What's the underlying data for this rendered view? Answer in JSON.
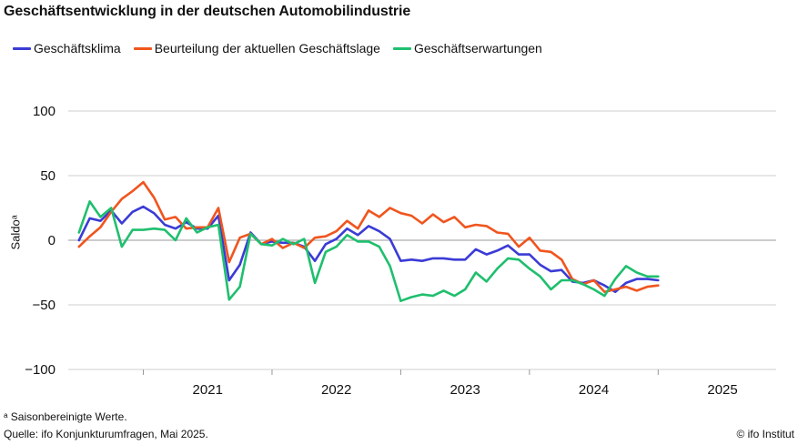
{
  "title": "Geschäftsentwicklung in der deutschen Automobilindustrie",
  "footnote": "ᵃ Saisonbereinigte Werte.",
  "source": "Quelle: ifo Konjunkturumfragen, Mai 2025.",
  "credit": "© ifo Institut",
  "colors": {
    "klima": "#3b3bd6",
    "lage": "#f0551e",
    "erwartungen": "#1fbf6e",
    "grid": "#cfcfcf",
    "zero": "#9a9a9a"
  },
  "chart_data": {
    "type": "line",
    "ylabel": "Saldoᵃ",
    "ylim": [
      -100,
      100
    ],
    "yticks": [
      100,
      50,
      0,
      -50,
      -100
    ],
    "ytick_labels": [
      "100",
      "50",
      "0",
      "−50",
      "−100"
    ],
    "x_start": "2020-06",
    "x_end": "2025-12",
    "year_labels": [
      "2021",
      "2022",
      "2023",
      "2024",
      "2025"
    ],
    "grid": true,
    "legend": "top-left",
    "series": [
      {
        "name": "Geschäftsklima",
        "key": "klima",
        "values": [
          0,
          17,
          15,
          23,
          13,
          22,
          26,
          21,
          12,
          9,
          14,
          9,
          9,
          19,
          -31,
          -19,
          6,
          -3,
          -1,
          -2,
          -2,
          -5,
          -16,
          -3,
          1,
          9,
          4,
          11,
          7,
          1,
          -16,
          -15,
          -16,
          -14,
          -14,
          -15,
          -15,
          -7,
          -11,
          -8,
          -4,
          -11,
          -11,
          -19,
          -24,
          -23,
          -32,
          -33,
          -31,
          -35,
          -40,
          -33,
          -30,
          -30,
          -31
        ]
      },
      {
        "name": "Beurteilung der aktuellen Geschäftslage",
        "key": "lage",
        "values": [
          -5,
          3,
          10,
          22,
          32,
          38,
          45,
          33,
          16,
          18,
          9,
          10,
          10,
          25,
          -17,
          2,
          5,
          -3,
          1,
          -6,
          -2,
          -6,
          2,
          3,
          7,
          15,
          9,
          23,
          18,
          25,
          21,
          19,
          13,
          20,
          14,
          18,
          10,
          12,
          11,
          6,
          5,
          -5,
          2,
          -8,
          -9,
          -15,
          -30,
          -34,
          -31,
          -40,
          -38,
          -36,
          -39,
          -36,
          -35
        ]
      },
      {
        "name": "Geschäftserwartungen",
        "key": "erwartungen",
        "values": [
          6,
          30,
          18,
          25,
          -5,
          8,
          8,
          9,
          8,
          0,
          17,
          6,
          10,
          12,
          -46,
          -36,
          5,
          -3,
          -4,
          1,
          -3,
          1,
          -33,
          -9,
          -5,
          4,
          -1,
          -1,
          -5,
          -20,
          -47,
          -44,
          -42,
          -43,
          -39,
          -43,
          -38,
          -25,
          -32,
          -22,
          -14,
          -15,
          -22,
          -28,
          -38,
          -31,
          -31,
          -34,
          -38,
          -43,
          -30,
          -20,
          -25,
          -28,
          -28
        ]
      }
    ]
  }
}
